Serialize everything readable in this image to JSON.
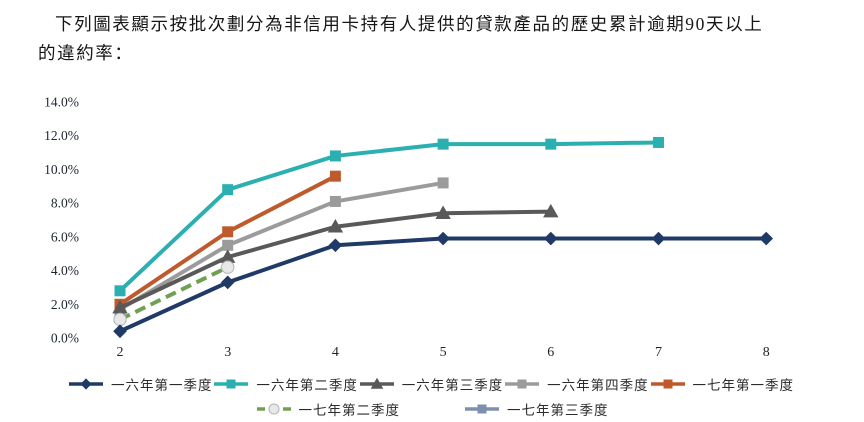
{
  "title": {
    "line1": "下列圖表顯示按批次劃分為非信用卡持有人提供的貸款產品的歷史累計逾期90天以上",
    "line2": "的違約率："
  },
  "chart_data": {
    "type": "line",
    "title": "",
    "xlabel": "",
    "ylabel": "",
    "x_ticks": [
      "2",
      "3",
      "4",
      "5",
      "6",
      "7",
      "8"
    ],
    "y_ticks": [
      "14.0%",
      "12.0%",
      "10.0%",
      "8.0%",
      "6.0%",
      "4.0%",
      "2.0%",
      "0.0%"
    ],
    "xlim": [
      2,
      8
    ],
    "ylim": [
      0,
      14
    ],
    "grid": false,
    "legend_position": "bottom",
    "series": [
      {
        "name": "一六年第一季度",
        "color": "#203a67",
        "marker": "diamond",
        "dash": false,
        "points": [
          [
            2,
            0.4
          ],
          [
            3,
            3.3
          ],
          [
            4,
            5.5
          ],
          [
            5,
            5.9
          ],
          [
            6,
            5.9
          ],
          [
            7,
            5.9
          ],
          [
            8,
            5.9
          ]
        ]
      },
      {
        "name": "一六年第二季度",
        "color": "#2bafb0",
        "marker": "square",
        "dash": false,
        "points": [
          [
            2,
            2.8
          ],
          [
            3,
            8.8
          ],
          [
            4,
            10.8
          ],
          [
            5,
            11.5
          ],
          [
            6,
            11.5
          ],
          [
            7,
            11.6
          ]
        ]
      },
      {
        "name": "一六年第三季度",
        "color": "#595959",
        "marker": "triangle",
        "dash": false,
        "points": [
          [
            2,
            1.8
          ],
          [
            3,
            4.8
          ],
          [
            4,
            6.6
          ],
          [
            5,
            7.4
          ],
          [
            6,
            7.5
          ]
        ]
      },
      {
        "name": "一六年第四季度",
        "color": "#9b9b9b",
        "marker": "square",
        "dash": false,
        "points": [
          [
            2,
            1.7
          ],
          [
            3,
            5.5
          ],
          [
            4,
            8.1
          ],
          [
            5,
            9.2
          ]
        ]
      },
      {
        "name": "一七年第一季度",
        "color": "#be5a2c",
        "marker": "square",
        "dash": false,
        "points": [
          [
            2,
            2.0
          ],
          [
            3,
            6.3
          ],
          [
            4,
            9.6
          ]
        ]
      },
      {
        "name": "一七年第二季度",
        "color": "#70a052",
        "marker": "circle",
        "dash": true,
        "marker_fill": "#e8e8e8",
        "marker_stroke": "#b3b3b3",
        "points": [
          [
            2,
            1.1
          ],
          [
            3,
            4.2
          ]
        ]
      },
      {
        "name": "一七年第三季度",
        "color": "#7e8fb0",
        "marker": "square",
        "dash": false,
        "points": [
          [
            2,
            1.6
          ]
        ]
      }
    ]
  }
}
